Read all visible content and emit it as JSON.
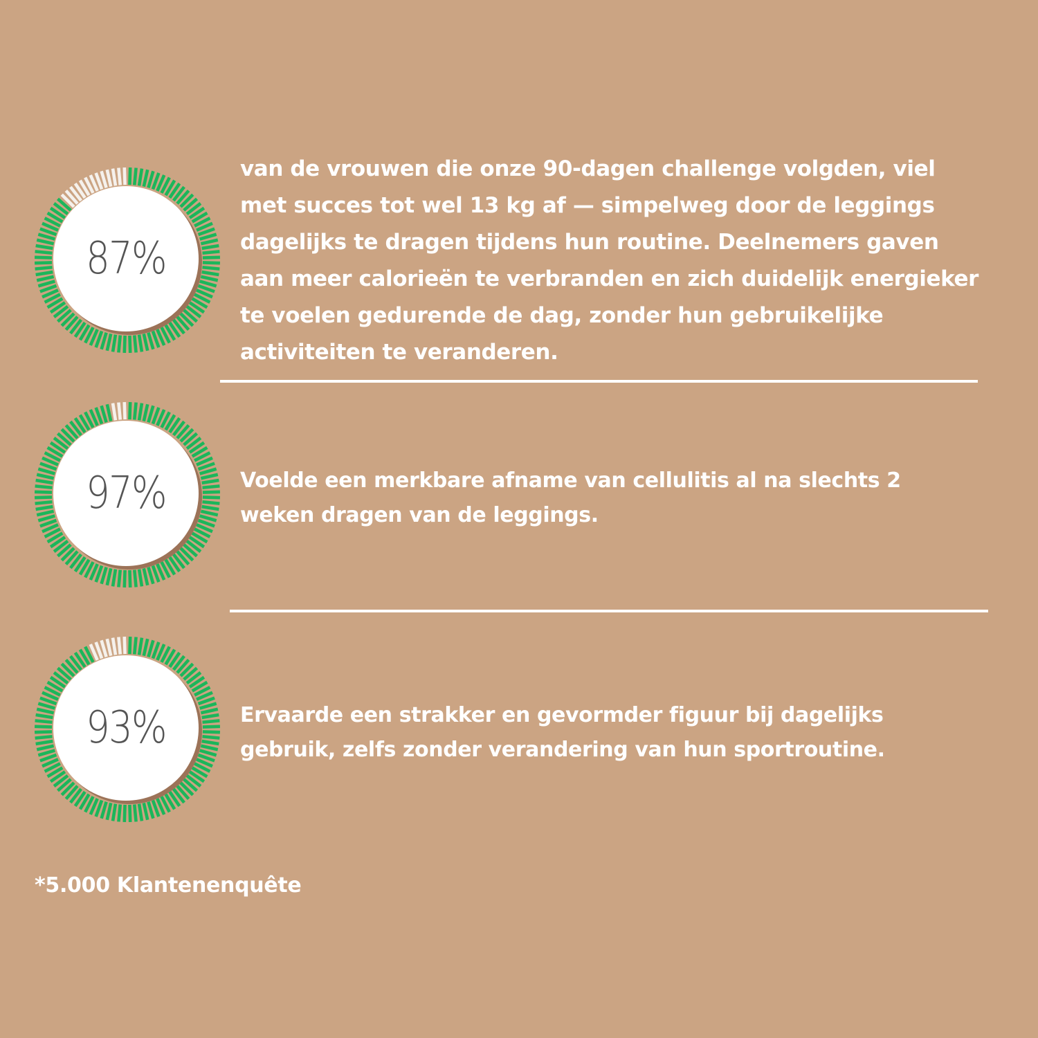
{
  "colors": {
    "background": "#cba483",
    "gauge_filled": "#1bb65a",
    "gauge_empty": "#f5f1ec",
    "disc": "#ffffff",
    "text": "#ffffff",
    "percent_text": "#555555"
  },
  "stats": [
    {
      "percent_label": "87%",
      "value": 87,
      "text": "van de vrouwen die onze 90-dagen challenge volgden, viel met succes tot wel 13 kg af — simpelweg door de leggings dagelijks te dragen tijdens hun routine. Deelnemers gaven aan meer calorieën te verbranden en zich duidelijk energieker te voelen gedurende de dag, zonder hun gebruikelijke activiteiten te veranderen."
    },
    {
      "percent_label": "97%",
      "value": 97,
      "text": "Voelde een merkbare afname van cellulitis al na slechts 2 weken dragen van de leggings."
    },
    {
      "percent_label": "93%",
      "value": 93,
      "text": "Ervaarde een strakker en gevormder figuur bij dagelijks gebruik, zelfs zonder verandering van hun sportroutine."
    }
  ],
  "footnote": "*5.000 Klantenenquête"
}
